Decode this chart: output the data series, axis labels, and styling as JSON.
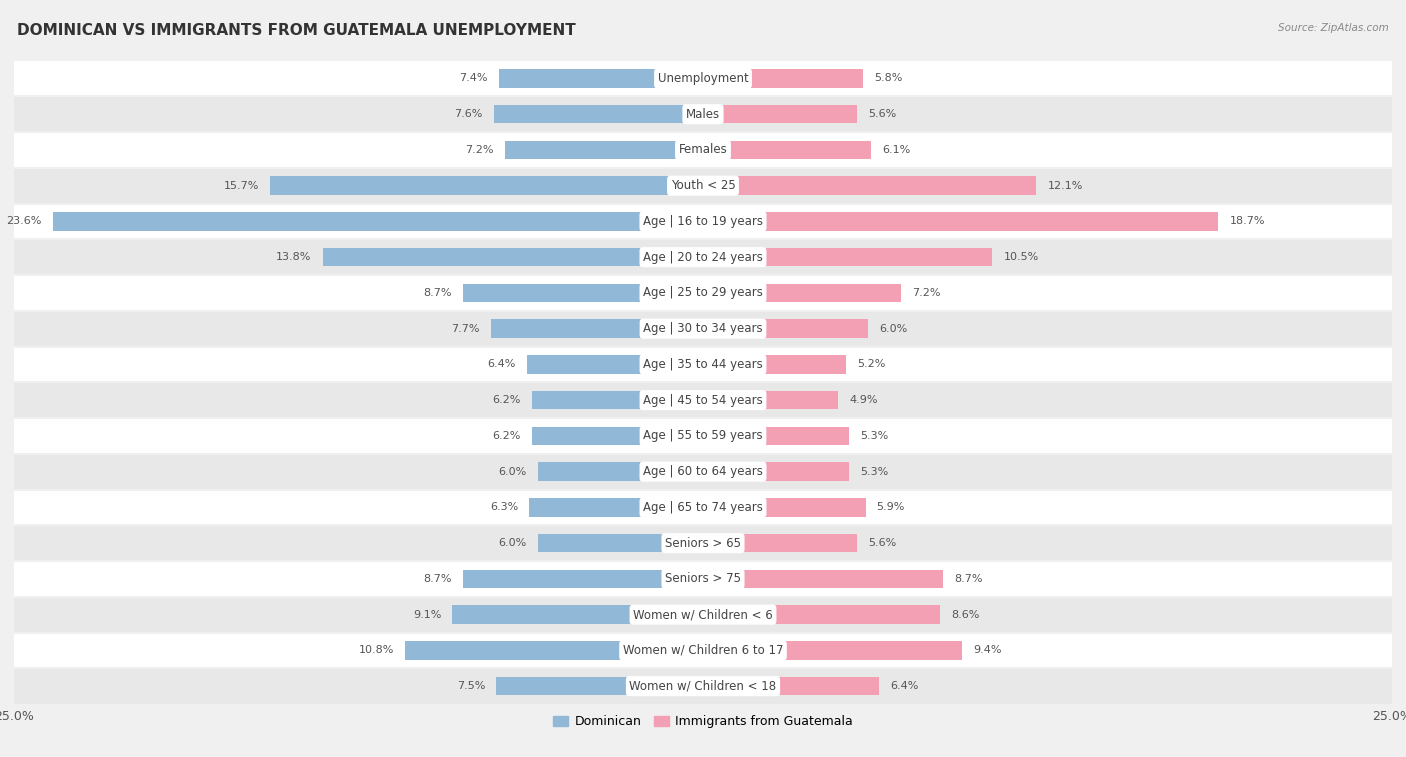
{
  "title": "DOMINICAN VS IMMIGRANTS FROM GUATEMALA UNEMPLOYMENT",
  "source": "Source: ZipAtlas.com",
  "categories": [
    "Unemployment",
    "Males",
    "Females",
    "Youth < 25",
    "Age | 16 to 19 years",
    "Age | 20 to 24 years",
    "Age | 25 to 29 years",
    "Age | 30 to 34 years",
    "Age | 35 to 44 years",
    "Age | 45 to 54 years",
    "Age | 55 to 59 years",
    "Age | 60 to 64 years",
    "Age | 65 to 74 years",
    "Seniors > 65",
    "Seniors > 75",
    "Women w/ Children < 6",
    "Women w/ Children 6 to 17",
    "Women w/ Children < 18"
  ],
  "dominican": [
    7.4,
    7.6,
    7.2,
    15.7,
    23.6,
    13.8,
    8.7,
    7.7,
    6.4,
    6.2,
    6.2,
    6.0,
    6.3,
    6.0,
    8.7,
    9.1,
    10.8,
    7.5
  ],
  "guatemala": [
    5.8,
    5.6,
    6.1,
    12.1,
    18.7,
    10.5,
    7.2,
    6.0,
    5.2,
    4.9,
    5.3,
    5.3,
    5.9,
    5.6,
    8.7,
    8.6,
    9.4,
    6.4
  ],
  "dominican_color": "#92b8d8",
  "guatemala_color": "#f4a0b4",
  "dominican_label": "Dominican",
  "guatemala_label": "Immigrants from Guatemala",
  "axis_max": 25.0,
  "background_color": "#f0f0f0",
  "row_color_odd": "#ffffff",
  "row_color_even": "#e8e8e8",
  "title_fontsize": 11,
  "label_fontsize": 8.5,
  "value_fontsize": 8.0
}
